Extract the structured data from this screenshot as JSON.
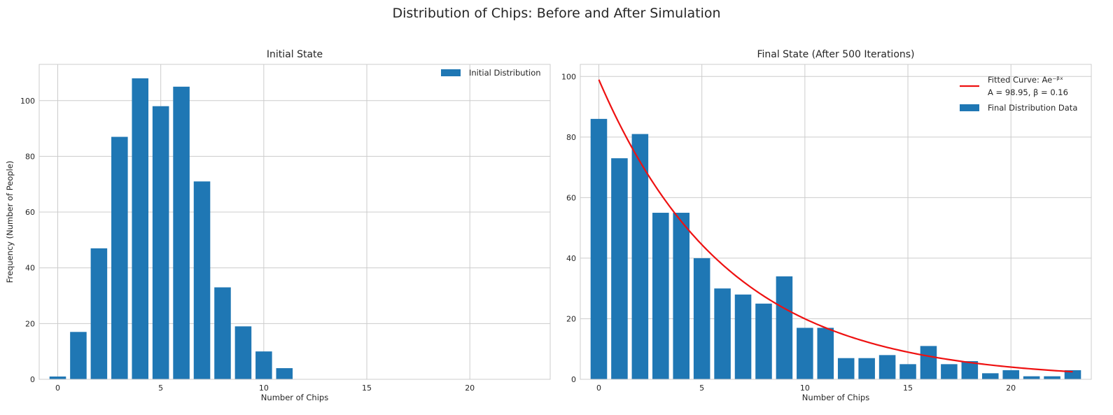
{
  "figure": {
    "title": "Distribution of Chips: Before and After Simulation"
  },
  "colors": {
    "bar": "#1f77b4",
    "curve": "#ee1111",
    "grid": "#cccccc",
    "frame": "#cccccc"
  },
  "chart_data": [
    {
      "type": "bar",
      "title": "Initial State",
      "xlabel": "Number of Chips",
      "ylabel": "Frequency (Number of People)",
      "xlim": [
        -0.9,
        23.9
      ],
      "ylim": [
        0,
        113
      ],
      "xticks": [
        0,
        5,
        10,
        15,
        20
      ],
      "yticks": [
        0,
        20,
        40,
        60,
        80,
        100
      ],
      "grid": true,
      "legend_position": "upper-right",
      "series": [
        {
          "name": "Initial Distribution",
          "x": [
            0,
            1,
            2,
            3,
            4,
            5,
            6,
            7,
            8,
            9,
            10,
            11
          ],
          "values": [
            1,
            17,
            47,
            87,
            108,
            98,
            105,
            71,
            33,
            19,
            10,
            4
          ]
        }
      ]
    },
    {
      "type": "bar",
      "title": "Final State (After 500 Iterations)",
      "xlabel": "Number of Chips",
      "ylabel": "",
      "xlim": [
        -0.9,
        23.9
      ],
      "ylim": [
        0,
        104
      ],
      "xticks": [
        0,
        5,
        10,
        15,
        20
      ],
      "yticks": [
        0,
        20,
        40,
        60,
        80,
        100
      ],
      "grid": true,
      "legend_position": "upper-right",
      "series": [
        {
          "name": "Final Distribution Data",
          "x": [
            0,
            1,
            2,
            3,
            4,
            5,
            6,
            7,
            8,
            9,
            10,
            11,
            12,
            13,
            14,
            15,
            16,
            17,
            18,
            19,
            20,
            21,
            22,
            23
          ],
          "values": [
            86,
            73,
            81,
            55,
            55,
            40,
            30,
            28,
            25,
            34,
            17,
            17,
            7,
            7,
            8,
            5,
            11,
            5,
            6,
            2,
            3,
            1,
            1,
            3
          ]
        }
      ],
      "fitted_curve": {
        "name_line1": "Fitted Curve: Ae⁻ᵝˣ",
        "name_line2": "A = 98.95, β = 0.16",
        "A": 98.95,
        "beta": 0.16,
        "x_range": [
          0,
          23
        ]
      }
    }
  ]
}
